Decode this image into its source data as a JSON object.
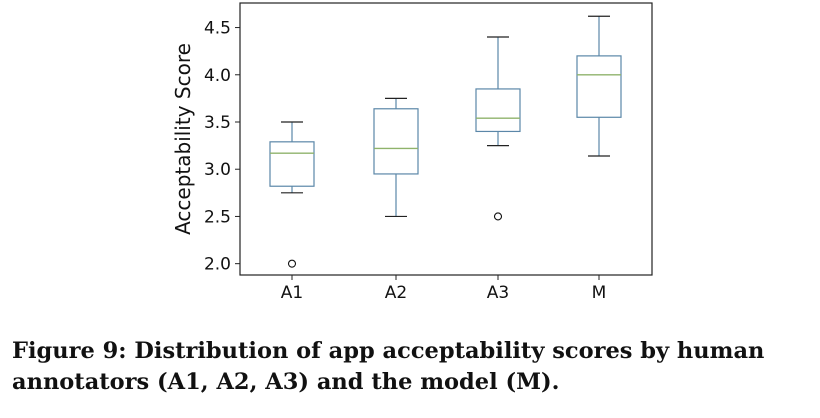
{
  "chart_data": {
    "type": "boxplot",
    "categories": [
      "A1",
      "A2",
      "A3",
      "M"
    ],
    "boxes": [
      {
        "whisker_low": 2.75,
        "q1": 2.82,
        "median": 3.17,
        "q3": 3.29,
        "whisker_high": 3.5,
        "outliers": [
          2.0
        ]
      },
      {
        "whisker_low": 2.5,
        "q1": 2.95,
        "median": 3.22,
        "q3": 3.64,
        "whisker_high": 3.75,
        "outliers": []
      },
      {
        "whisker_low": 3.25,
        "q1": 3.4,
        "median": 3.54,
        "q3": 3.85,
        "whisker_high": 4.4,
        "outliers": [
          2.5
        ]
      },
      {
        "whisker_low": 3.14,
        "q1": 3.55,
        "median": 4.0,
        "q3": 4.2,
        "whisker_high": 4.62,
        "outliers": []
      }
    ],
    "ylabel": "Acceptability Score",
    "ylim": [
      1.88,
      4.76
    ],
    "yticks": [
      "2.0",
      "2.5",
      "3.0",
      "3.5",
      "4.0",
      "4.5"
    ],
    "grid": false,
    "colors": {
      "box": "#5b87a8",
      "median": "#8fb36b",
      "axis": "#222222"
    }
  },
  "caption": "Figure 9: Distribution of app acceptability scores by human annotators (A1, A2, A3) and the model (M)."
}
